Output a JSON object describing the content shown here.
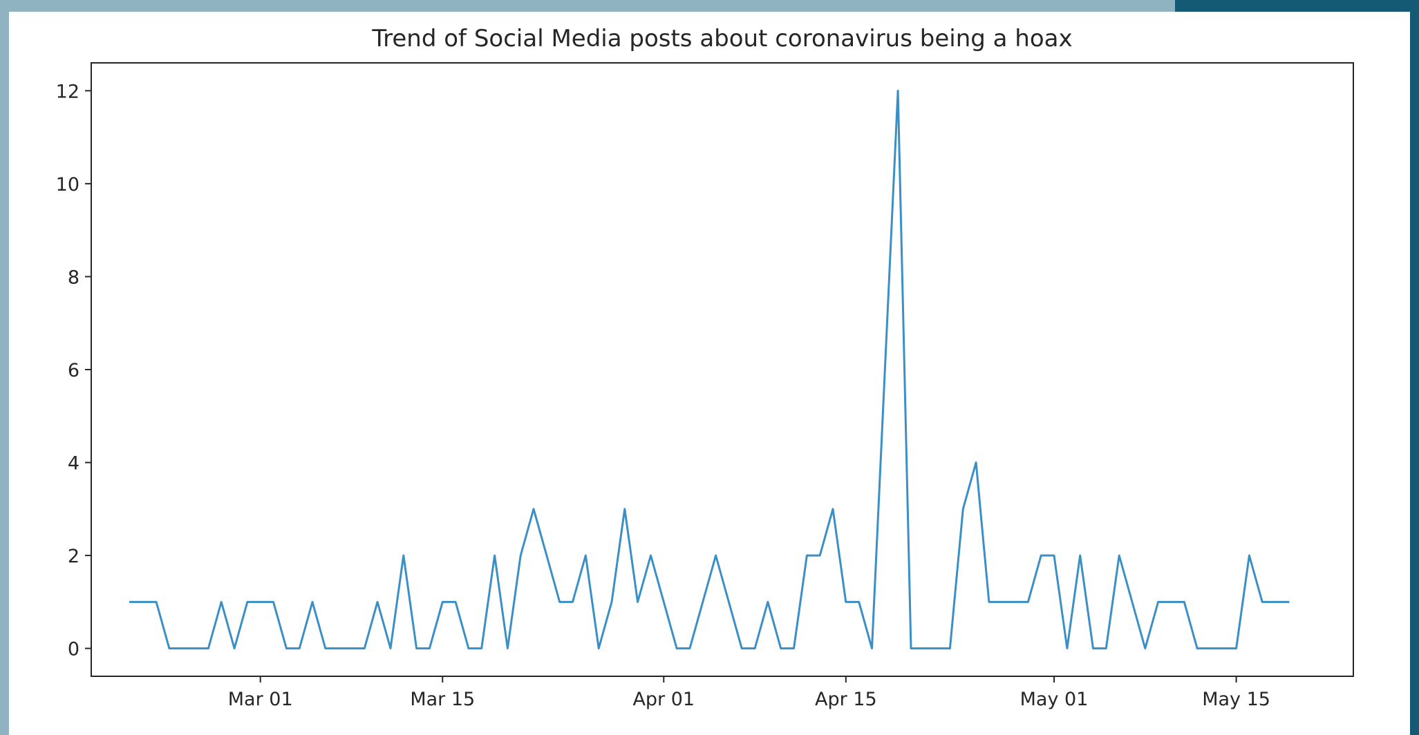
{
  "chart_data": {
    "type": "line",
    "title": "Trend of Social Media posts about coronavirus being a hoax",
    "xlabel": "",
    "ylabel": "",
    "ylim": [
      -0.6,
      12.6
    ],
    "xlim": [
      "2020-02-17",
      "2020-05-24"
    ],
    "yticks": [
      0,
      2,
      4,
      6,
      8,
      10,
      12
    ],
    "ytick_labels": [
      "0",
      "2",
      "4",
      "6",
      "8",
      "10",
      "12"
    ],
    "xticks": [
      "2020-03-01",
      "2020-03-15",
      "2020-04-01",
      "2020-04-15",
      "2020-05-01",
      "2020-05-15"
    ],
    "xtick_labels": [
      "Mar 01",
      "Mar 15",
      "Apr 01",
      "Apr 15",
      "May 01",
      "May 15"
    ],
    "grid": false,
    "line_color": "#3a8fc6",
    "series": [
      {
        "x": [
          "2020-02-20",
          "2020-02-21",
          "2020-02-22",
          "2020-02-23",
          "2020-02-24",
          "2020-02-25",
          "2020-02-26",
          "2020-02-27",
          "2020-02-28",
          "2020-02-29",
          "2020-03-01",
          "2020-03-02",
          "2020-03-03",
          "2020-03-04",
          "2020-03-05",
          "2020-03-06",
          "2020-03-07",
          "2020-03-08",
          "2020-03-09",
          "2020-03-10",
          "2020-03-11",
          "2020-03-12",
          "2020-03-13",
          "2020-03-14",
          "2020-03-15",
          "2020-03-16",
          "2020-03-17",
          "2020-03-18",
          "2020-03-19",
          "2020-03-20",
          "2020-03-21",
          "2020-03-22",
          "2020-03-23",
          "2020-03-24",
          "2020-03-25",
          "2020-03-26",
          "2020-03-27",
          "2020-03-28",
          "2020-03-29",
          "2020-03-30",
          "2020-03-31",
          "2020-04-01",
          "2020-04-02",
          "2020-04-03",
          "2020-04-04",
          "2020-04-05",
          "2020-04-06",
          "2020-04-07",
          "2020-04-08",
          "2020-04-09",
          "2020-04-10",
          "2020-04-11",
          "2020-04-12",
          "2020-04-13",
          "2020-04-14",
          "2020-04-15",
          "2020-04-16",
          "2020-04-17",
          "2020-04-18",
          "2020-04-19",
          "2020-04-20",
          "2020-04-21",
          "2020-04-22",
          "2020-04-23",
          "2020-04-24",
          "2020-04-25",
          "2020-04-26",
          "2020-04-27",
          "2020-04-28",
          "2020-04-29",
          "2020-04-30",
          "2020-05-01",
          "2020-05-02",
          "2020-05-03",
          "2020-05-04",
          "2020-05-05",
          "2020-05-06",
          "2020-05-07",
          "2020-05-08",
          "2020-05-09",
          "2020-05-10",
          "2020-05-11",
          "2020-05-12",
          "2020-05-13",
          "2020-05-14",
          "2020-05-15",
          "2020-05-16",
          "2020-05-17",
          "2020-05-18",
          "2020-05-19"
        ],
        "values": [
          1,
          1,
          1,
          0,
          0,
          0,
          0,
          1,
          0,
          1,
          1,
          1,
          0,
          0,
          1,
          0,
          0,
          0,
          0,
          1,
          0,
          2,
          0,
          0,
          1,
          1,
          0,
          0,
          2,
          0,
          2,
          3,
          2,
          1,
          1,
          2,
          0,
          1,
          3,
          1,
          2,
          1,
          0,
          0,
          1,
          2,
          1,
          0,
          0,
          1,
          0,
          0,
          2,
          2,
          3,
          1,
          1,
          0,
          6,
          12,
          0,
          0,
          0,
          0,
          3,
          4,
          1,
          1,
          1,
          1,
          2,
          2,
          0,
          2,
          0,
          0,
          2,
          1,
          0,
          1,
          1,
          1,
          0,
          0,
          0,
          0,
          2,
          1,
          1,
          1
        ]
      }
    ]
  }
}
